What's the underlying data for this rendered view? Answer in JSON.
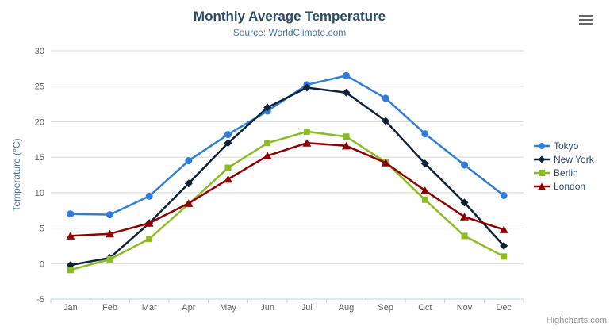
{
  "chart_data": {
    "type": "line",
    "title": "Monthly Average Temperature",
    "subtitle": "Source: WorldClimate.com",
    "categories": [
      "Jan",
      "Feb",
      "Mar",
      "Apr",
      "May",
      "Jun",
      "Jul",
      "Aug",
      "Sep",
      "Oct",
      "Nov",
      "Dec"
    ],
    "xlabel": "",
    "ylabel": "Temperature (°C)",
    "ylim": [
      -5,
      30
    ],
    "yticks": [
      -5,
      0,
      5,
      10,
      15,
      20,
      25,
      30
    ],
    "grid": "horizontal",
    "legend_position": "right",
    "series": [
      {
        "name": "Tokyo",
        "color": "#2f7ed8",
        "marker": "circle",
        "values": [
          7.0,
          6.9,
          9.5,
          14.5,
          18.2,
          21.5,
          25.2,
          26.5,
          23.3,
          18.3,
          13.9,
          9.6
        ]
      },
      {
        "name": "New York",
        "color": "#0d233a",
        "marker": "diamond",
        "values": [
          -0.2,
          0.8,
          5.7,
          11.3,
          17.0,
          22.0,
          24.8,
          24.1,
          20.1,
          14.1,
          8.6,
          2.5
        ]
      },
      {
        "name": "Berlin",
        "color": "#8bbc21",
        "marker": "square",
        "values": [
          -0.9,
          0.6,
          3.5,
          8.4,
          13.5,
          17.0,
          18.6,
          17.9,
          14.3,
          9.0,
          3.9,
          1.0
        ]
      },
      {
        "name": "London",
        "color": "#910000",
        "marker": "triangle",
        "values": [
          3.9,
          4.2,
          5.7,
          8.5,
          11.9,
          15.2,
          17.0,
          16.6,
          14.2,
          10.3,
          6.6,
          4.8
        ]
      }
    ]
  },
  "colors": {
    "title": "#274b6d",
    "subtitle": "#4d759e",
    "axis_label": "#606060",
    "axis_title": "#4d759e",
    "grid_line": "#d8d8d8",
    "axis_line": "#c0d0e0",
    "legend_text": "#274b6d",
    "credit_text": "#909090",
    "menu_icon": "#666666"
  },
  "toolbar": {
    "export_menu_icon": "hamburger-icon"
  },
  "credit": {
    "label": "Highcharts.com"
  }
}
